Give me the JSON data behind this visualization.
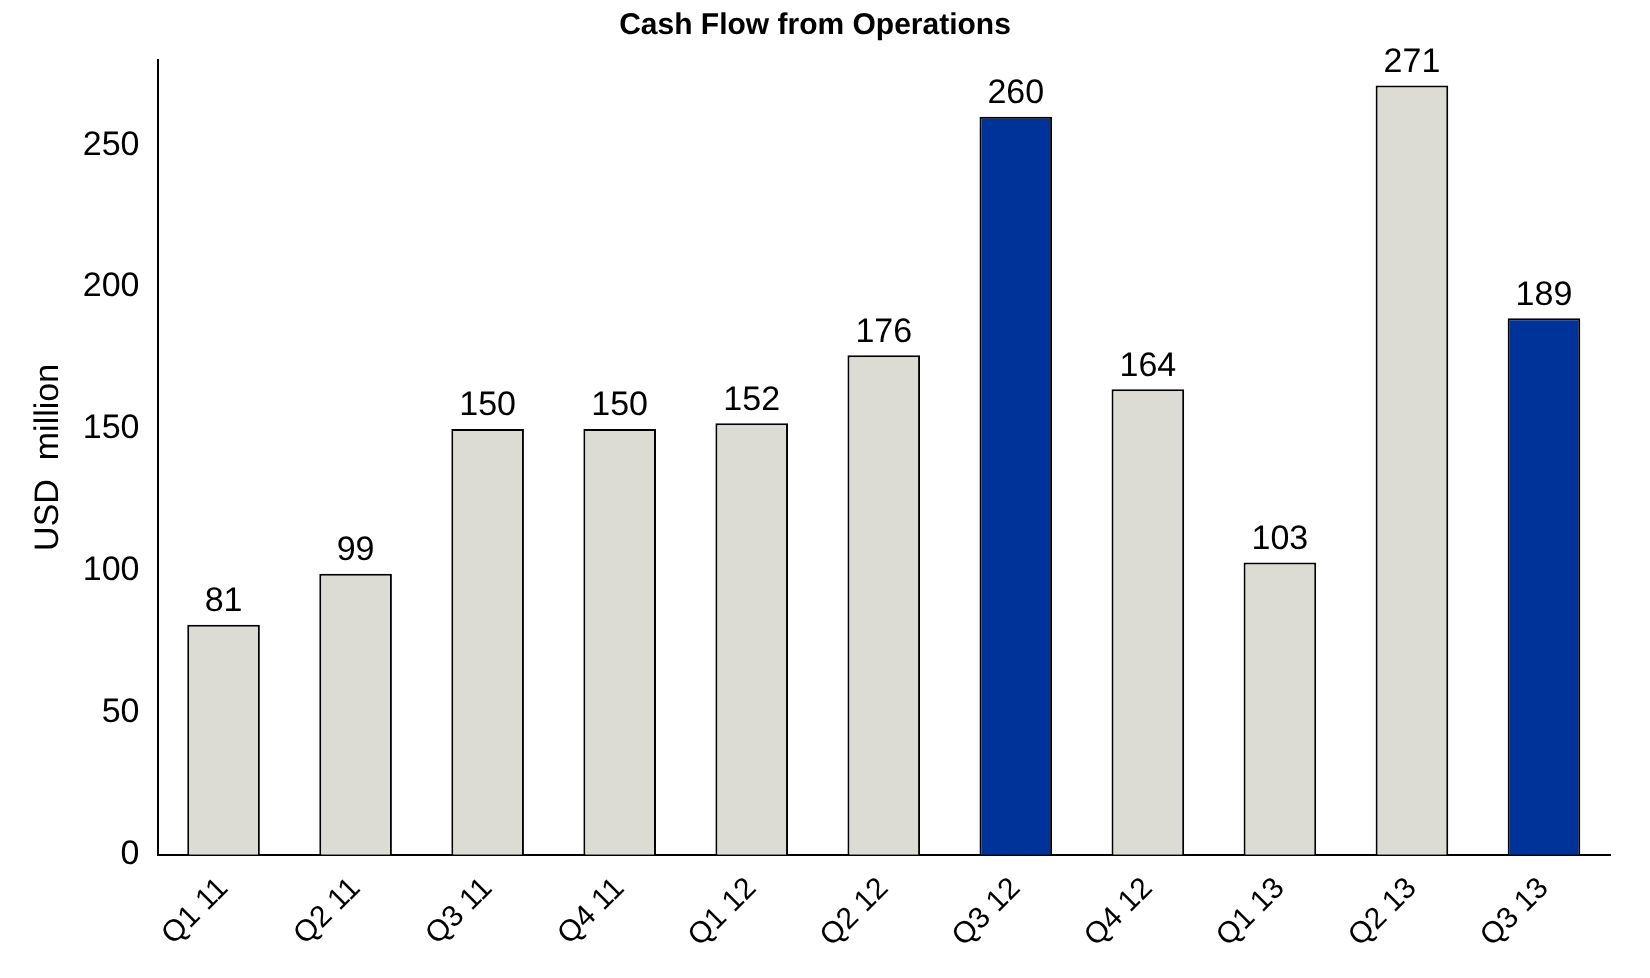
{
  "chart_data": {
    "type": "bar",
    "title": "Cash Flow from Operations",
    "ylabel": "USD  million",
    "categories": [
      "Q1 11",
      "Q2 11",
      "Q3 11",
      "Q4 11",
      "Q1 12",
      "Q2 12",
      "Q3 12",
      "Q4 12",
      "Q1 13",
      "Q2 13",
      "Q3 13"
    ],
    "values": [
      81,
      99,
      150,
      150,
      152,
      176,
      260,
      164,
      103,
      271,
      189
    ],
    "colors": [
      "#dcdcd4",
      "#dcdcd4",
      "#dcdcd4",
      "#dcdcd4",
      "#dcdcd4",
      "#dcdcd4",
      "#003399",
      "#dcdcd4",
      "#dcdcd4",
      "#dcdcd4",
      "#003399"
    ],
    "ylim": [
      0,
      280
    ],
    "yticks": [
      0,
      50,
      100,
      150,
      200,
      250
    ],
    "grid": false,
    "legend": false,
    "data_labels": true
  }
}
